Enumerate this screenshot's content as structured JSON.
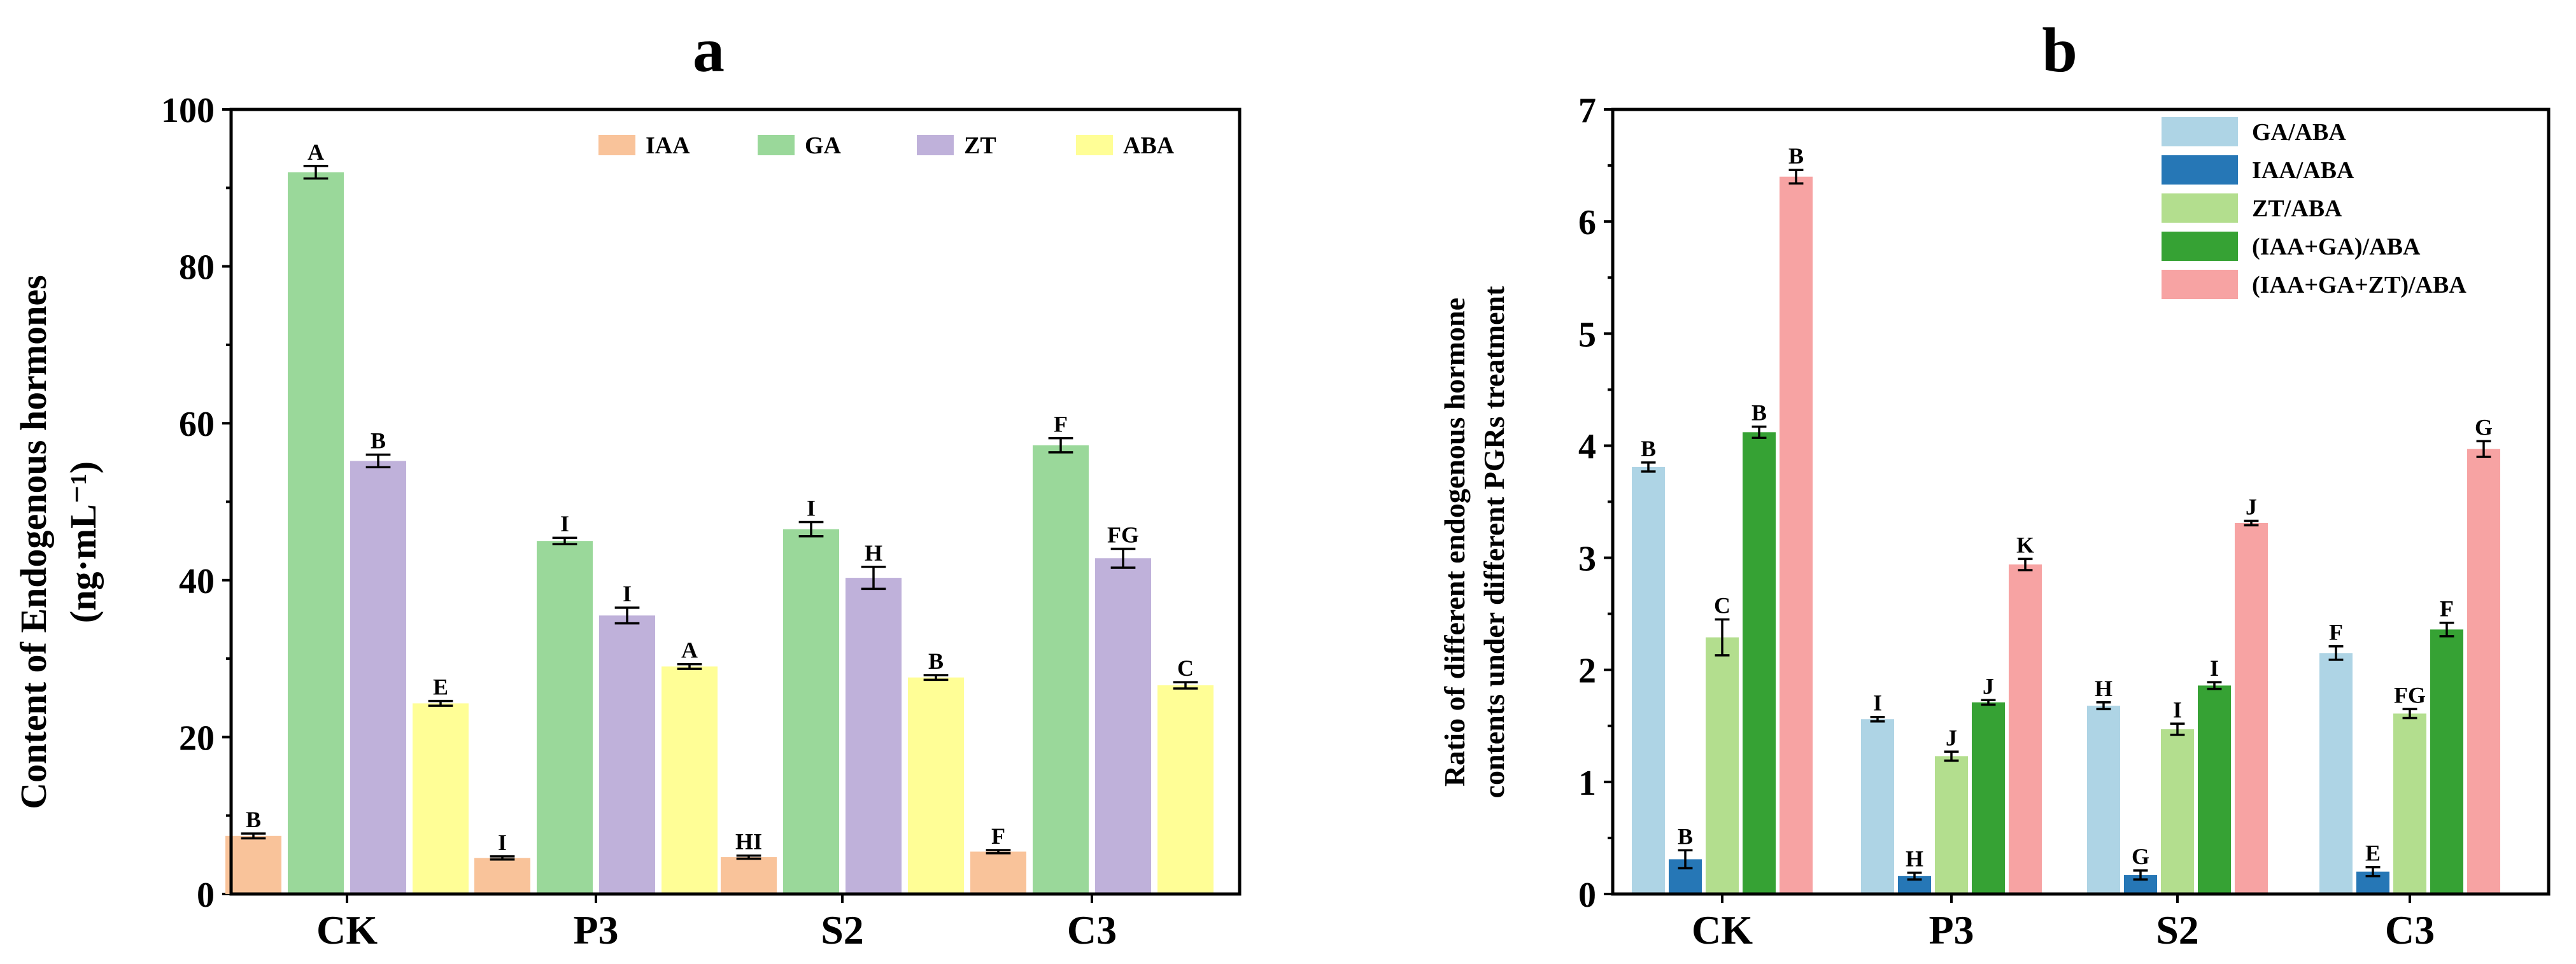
{
  "chart_data": [
    {
      "id": "a",
      "type": "bar",
      "title": "a",
      "xlabel": "",
      "ylabel_line1": "Content of Endogenous hormones",
      "ylabel_line2": "(ng·mL⁻¹)",
      "ylim": [
        0,
        100
      ],
      "yticks": [
        0,
        20,
        40,
        60,
        80,
        100
      ],
      "legend_position": "top-right",
      "categories": [
        "CK",
        "P3",
        "S2",
        "C3"
      ],
      "series": [
        {
          "name": "IAA",
          "color": "#F9C39A",
          "values": [
            7.4,
            4.6,
            4.7,
            5.4
          ],
          "errors": [
            0.3,
            0.2,
            0.2,
            0.2
          ],
          "labels": [
            "B",
            "I",
            "HI",
            "F"
          ]
        },
        {
          "name": "GA",
          "color": "#9AD89A",
          "values": [
            92.0,
            45.0,
            46.5,
            57.2
          ],
          "errors": [
            0.8,
            0.4,
            0.9,
            0.9
          ],
          "labels": [
            "A",
            "I",
            "I",
            "F"
          ]
        },
        {
          "name": "ZT",
          "color": "#BFB1DA",
          "values": [
            55.2,
            35.5,
            40.3,
            42.8
          ],
          "errors": [
            0.8,
            1.0,
            1.4,
            1.2
          ],
          "labels": [
            "B",
            "I",
            "H",
            "FG"
          ]
        },
        {
          "name": "ABA",
          "color": "#FFFE96",
          "values": [
            24.3,
            29.0,
            27.6,
            26.6
          ],
          "errors": [
            0.3,
            0.3,
            0.3,
            0.4
          ],
          "labels": [
            "E",
            "A",
            "B",
            "C"
          ]
        }
      ]
    },
    {
      "id": "b",
      "type": "bar",
      "title": "b",
      "xlabel": "",
      "ylabel_line1": "Ratio of different endogenous hormone",
      "ylabel_line2": "contents under different PGRs treatment",
      "ylim": [
        0,
        7
      ],
      "yticks": [
        0,
        1,
        2,
        3,
        4,
        5,
        6,
        7
      ],
      "legend_position": "top-right",
      "categories": [
        "CK",
        "P3",
        "S2",
        "C3"
      ],
      "series": [
        {
          "name": "GA/ABA",
          "color": "#AED4E5",
          "values": [
            3.81,
            1.56,
            1.68,
            2.15
          ],
          "errors": [
            0.04,
            0.02,
            0.03,
            0.06
          ],
          "labels": [
            "B",
            "I",
            "H",
            "F"
          ]
        },
        {
          "name": "IAA/ABA",
          "color": "#2677B6",
          "values": [
            0.31,
            0.16,
            0.17,
            0.2
          ],
          "errors": [
            0.08,
            0.03,
            0.04,
            0.04
          ],
          "labels": [
            "B",
            "H",
            "G",
            "E"
          ]
        },
        {
          "name": "ZT/ABA",
          "color": "#B3DE8E",
          "values": [
            2.29,
            1.23,
            1.47,
            1.61
          ],
          "errors": [
            0.16,
            0.04,
            0.05,
            0.04
          ],
          "labels": [
            "C",
            "J",
            "I",
            "FG"
          ]
        },
        {
          "name": "(IAA+GA)/ABA",
          "color": "#36A234",
          "values": [
            4.12,
            1.71,
            1.86,
            2.36
          ],
          "errors": [
            0.05,
            0.02,
            0.03,
            0.06
          ],
          "labels": [
            "B",
            "J",
            "I",
            "F"
          ]
        },
        {
          "name": "(IAA+GA+ZT)/ABA",
          "color": "#F7A3A3",
          "values": [
            6.4,
            2.94,
            3.31,
            3.97
          ],
          "errors": [
            0.06,
            0.05,
            0.02,
            0.07
          ],
          "labels": [
            "B",
            "K",
            "J",
            "G"
          ]
        }
      ]
    }
  ]
}
